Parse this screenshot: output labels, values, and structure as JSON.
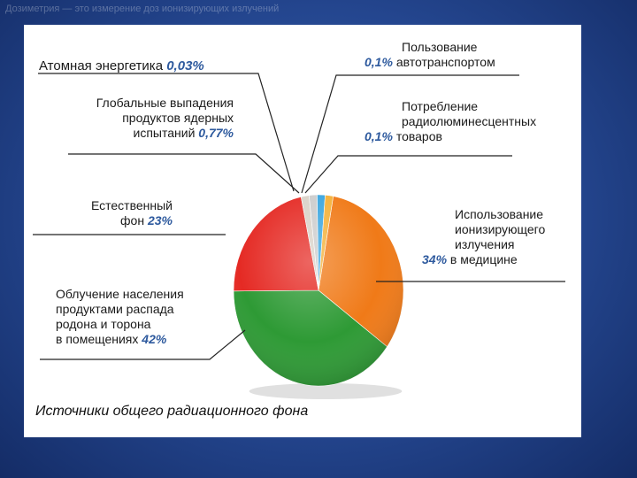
{
  "slide": {
    "caption": "Дозиметрия — это измерение доз ионизирующих излучений"
  },
  "chart_data": {
    "type": "pie",
    "title": "Источники общего радиационного фона",
    "slices": [
      {
        "label": "Использование ионизирующего излучения в медицине",
        "value": 34,
        "value_text": "34%",
        "color": "#f07a18"
      },
      {
        "label": "Облучение населения продуктами распада радона и торона в помещениях",
        "value": 42,
        "value_text": "42%",
        "color": "#2e9a35"
      },
      {
        "label": "Естественный фон",
        "value": 23,
        "value_text": "23%",
        "color": "#e52a24"
      },
      {
        "label": "Глобальные выпадения продуктов ядерных испытаний",
        "value": 0.77,
        "value_text": "0,77%",
        "color": "#d9d2c8"
      },
      {
        "label": "Атомная энергетика",
        "value": 0.03,
        "value_text": "0,03%",
        "color": "#cccccc"
      },
      {
        "label": "Пользование автотранспортом",
        "value": 0.1,
        "value_text": "0,1%",
        "color": "#3aa6e0"
      },
      {
        "label": "Потребление радиолюминесцентных товаров",
        "value": 0.1,
        "value_text": "0,1%",
        "color": "#f4b13a"
      }
    ]
  },
  "labels": {
    "atom_text": "Атомная энергетика",
    "atom_pct": "0,03%",
    "fallout_line1": "Глобальные выпадения",
    "fallout_line2": "продуктов ядерных",
    "fallout_line3": "испытаний",
    "fallout_pct": "0,77%",
    "natural_line1": "Естественный",
    "natural_line2": "фон",
    "natural_pct": "23%",
    "radon_line1": "Облучение населения",
    "radon_line2": "продуктами распада",
    "radon_line3": "родона и торона",
    "radon_line4": "в помещениях",
    "radon_pct": "42%",
    "auto_pct": "0,1%",
    "auto_line1": "Пользование",
    "auto_line2": "автотранспортом",
    "lum_pct": "0,1%",
    "lum_line1": "Потребление",
    "lum_line2": "радиолюминесцентных",
    "lum_line3": "товаров",
    "med_line1": "Использование",
    "med_line2": "ионизирующего",
    "med_line3": "излучения",
    "med_pct": "34%",
    "med_line4": "в медицине"
  }
}
